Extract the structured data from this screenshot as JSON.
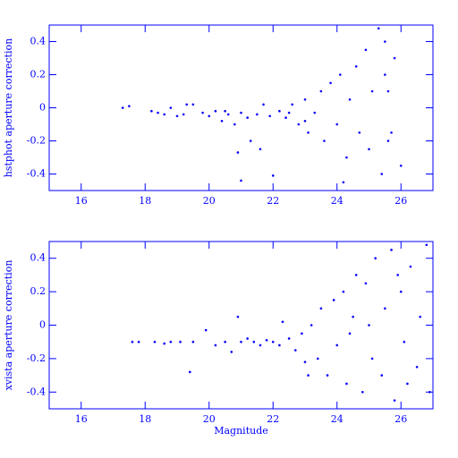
{
  "chart_data": [
    {
      "type": "scatter",
      "y_label": "hstphot aperture correction",
      "color": "#0000ff",
      "xlim": [
        15,
        27
      ],
      "ylim": [
        -0.5,
        0.5
      ],
      "xticks": [
        16,
        18,
        20,
        22,
        24,
        26
      ],
      "yticks": [
        -0.4,
        -0.2,
        0,
        0.2,
        0.4
      ],
      "x": [
        17.3,
        17.5,
        18.2,
        18.4,
        18.6,
        18.8,
        19.0,
        19.2,
        19.3,
        19.8,
        20.0,
        20.2,
        20.4,
        20.6,
        20.8,
        20.9,
        21.0,
        21.2,
        21.3,
        21.5,
        21.6,
        21.7,
        21.9,
        22.0,
        22.2,
        22.4,
        22.6,
        22.8,
        23.0,
        23.1,
        23.3,
        23.5,
        23.6,
        23.8,
        24.0,
        24.1,
        24.3,
        24.4,
        24.6,
        24.7,
        24.9,
        25.0,
        25.1,
        25.3,
        25.4,
        25.5,
        25.6,
        25.5,
        25.6,
        25.7,
        21.0,
        20.5,
        22.5,
        23.0,
        19.5,
        24.2,
        25.8,
        26.0
      ],
      "values": [
        0,
        0.01,
        -0.02,
        -0.03,
        -0.04,
        0,
        -0.05,
        -0.04,
        0.02,
        -0.03,
        -0.05,
        -0.02,
        -0.08,
        -0.04,
        -0.1,
        -0.27,
        -0.03,
        -0.06,
        -0.2,
        -0.04,
        -0.25,
        0.02,
        -0.05,
        -0.41,
        -0.02,
        -0.06,
        0.02,
        -0.1,
        0.05,
        -0.15,
        -0.03,
        0.1,
        -0.2,
        0.15,
        -0.1,
        0.2,
        -0.3,
        0.05,
        0.25,
        -0.15,
        0.35,
        -0.25,
        0.1,
        0.48,
        -0.4,
        0.4,
        -0.2,
        0.2,
        0.1,
        -0.15,
        -0.44,
        -0.02,
        -0.03,
        -0.08,
        0.02,
        -0.45,
        0.3,
        -0.35
      ]
    },
    {
      "type": "scatter",
      "x_label": "Magnitude",
      "y_label": "xvista aperture correction",
      "color": "#0000ff",
      "xlim": [
        15,
        27
      ],
      "ylim": [
        -0.5,
        0.5
      ],
      "xticks": [
        16,
        18,
        20,
        22,
        24,
        26
      ],
      "yticks": [
        -0.4,
        -0.2,
        0,
        0.2,
        0.4
      ],
      "x": [
        17.6,
        17.8,
        18.3,
        18.6,
        18.8,
        19.1,
        19.4,
        19.5,
        19.9,
        20.2,
        20.5,
        20.7,
        20.9,
        21.0,
        21.2,
        21.4,
        21.6,
        21.8,
        22.0,
        22.2,
        22.5,
        22.7,
        22.9,
        23.0,
        23.2,
        23.4,
        23.5,
        23.7,
        23.9,
        24.0,
        24.2,
        24.3,
        24.5,
        24.6,
        24.8,
        24.9,
        25.1,
        25.2,
        25.4,
        25.5,
        25.7,
        25.8,
        26.0,
        26.1,
        26.3,
        26.5,
        26.6,
        26.8,
        26.9,
        23.1,
        24.4,
        25.0,
        26.2,
        22.3,
        25.9
      ],
      "values": [
        -0.1,
        -0.1,
        -0.1,
        -0.11,
        -0.1,
        -0.1,
        -0.28,
        -0.1,
        -0.03,
        -0.12,
        -0.1,
        -0.16,
        0.05,
        -0.1,
        -0.08,
        -0.1,
        -0.12,
        -0.09,
        -0.1,
        -0.12,
        -0.08,
        -0.15,
        -0.05,
        -0.22,
        0,
        -0.2,
        0.1,
        -0.3,
        0.15,
        -0.12,
        0.2,
        -0.35,
        0.05,
        0.3,
        -0.4,
        0.25,
        -0.2,
        0.4,
        -0.3,
        0.1,
        0.45,
        -0.45,
        0.2,
        -0.1,
        0.35,
        -0.25,
        0.05,
        0.48,
        -0.4,
        -0.3,
        -0.05,
        0,
        -0.35,
        0.02,
        0.3
      ]
    }
  ]
}
